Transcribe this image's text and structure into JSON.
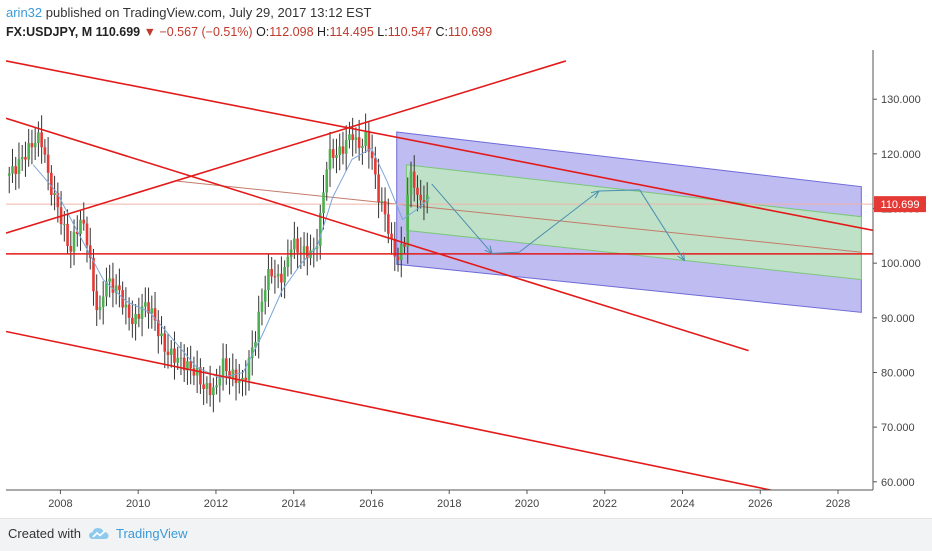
{
  "header": {
    "user": "arin32",
    "published": " published on TradingView.com, July 29, 2017 13:12 EST"
  },
  "quote": {
    "symbol": "FX:USDJPY, M",
    "last": "110.699",
    "change": "▼ −0.567 (−0.51%)",
    "o_label": "O:",
    "o": "112.098",
    "h_label": "H:",
    "h": "114.495",
    "l_label": "L:",
    "l": "110.547",
    "c_label": "C:",
    "c": "110.699"
  },
  "footer": {
    "created": "Created with",
    "brand": "TradingView"
  },
  "colors": {
    "up": "#4caf50",
    "down": "#e53935",
    "trend": "#e31a1a",
    "channel_outer": "#b3b0ee",
    "channel_inner": "#bfe8bf",
    "price_tag": "#e53935"
  },
  "chart_data": {
    "type": "candlestick",
    "symbol": "FX:USDJPY",
    "interval": "M",
    "x_range": [
      2006.6,
      2028.9
    ],
    "y_range": [
      58.5,
      139
    ],
    "x_ticks": [
      2008,
      2010,
      2012,
      2014,
      2016,
      2018,
      2020,
      2022,
      2024,
      2026,
      2028
    ],
    "x_tick_labels": [
      "2008",
      "2010",
      "2012",
      "2014",
      "2016",
      "2018",
      "2020",
      "2022",
      "2024",
      "2026",
      "2028"
    ],
    "y_ticks": [
      60,
      70,
      80,
      90,
      100,
      110,
      120,
      130
    ],
    "y_tick_labels": [
      "60.000",
      "70.000",
      "80.000",
      "90.000",
      "100.000",
      "110.000",
      "120.000",
      "130.000"
    ],
    "price_tag": "110.699",
    "price_path": [
      [
        2006.6,
        116
      ],
      [
        2006.8,
        117
      ],
      [
        2007.0,
        119
      ],
      [
        2007.2,
        121
      ],
      [
        2007.4,
        123
      ],
      [
        2007.55,
        122
      ],
      [
        2007.7,
        115
      ],
      [
        2007.9,
        111
      ],
      [
        2008.1,
        106
      ],
      [
        2008.25,
        102
      ],
      [
        2008.4,
        106
      ],
      [
        2008.55,
        108
      ],
      [
        2008.7,
        104
      ],
      [
        2008.85,
        95
      ],
      [
        2009.0,
        90
      ],
      [
        2009.15,
        97
      ],
      [
        2009.3,
        96
      ],
      [
        2009.5,
        95
      ],
      [
        2009.7,
        91
      ],
      [
        2009.9,
        89
      ],
      [
        2010.1,
        92
      ],
      [
        2010.3,
        92
      ],
      [
        2010.5,
        88
      ],
      [
        2010.7,
        84
      ],
      [
        2010.9,
        83
      ],
      [
        2011.1,
        82
      ],
      [
        2011.3,
        81
      ],
      [
        2011.5,
        80
      ],
      [
        2011.7,
        77
      ],
      [
        2011.9,
        77
      ],
      [
        2012.0,
        76.5
      ],
      [
        2012.15,
        82
      ],
      [
        2012.3,
        80
      ],
      [
        2012.5,
        79
      ],
      [
        2012.7,
        78
      ],
      [
        2012.85,
        82
      ],
      [
        2013.0,
        86
      ],
      [
        2013.2,
        94
      ],
      [
        2013.4,
        99
      ],
      [
        2013.55,
        97
      ],
      [
        2013.75,
        98
      ],
      [
        2013.95,
        104
      ],
      [
        2014.15,
        102
      ],
      [
        2014.35,
        102
      ],
      [
        2014.55,
        102
      ],
      [
        2014.7,
        109
      ],
      [
        2014.85,
        118
      ],
      [
        2014.95,
        120
      ],
      [
        2015.15,
        120
      ],
      [
        2015.35,
        122
      ],
      [
        2015.5,
        124
      ],
      [
        2015.65,
        121
      ],
      [
        2015.85,
        123
      ],
      [
        2016.0,
        120
      ],
      [
        2016.15,
        113
      ],
      [
        2016.3,
        110
      ],
      [
        2016.45,
        106
      ],
      [
        2016.55,
        102
      ],
      [
        2016.7,
        101
      ],
      [
        2016.85,
        104
      ],
      [
        2016.95,
        114
      ],
      [
        2017.05,
        117
      ],
      [
        2017.2,
        111
      ],
      [
        2017.35,
        112
      ],
      [
        2017.5,
        110.7
      ]
    ],
    "sma_path": [
      [
        2007.3,
        118
      ],
      [
        2007.9,
        113
      ],
      [
        2008.5,
        105
      ],
      [
        2009.1,
        97
      ],
      [
        2009.7,
        93
      ],
      [
        2010.3,
        91
      ],
      [
        2010.9,
        86
      ],
      [
        2011.5,
        81
      ],
      [
        2012.1,
        79
      ],
      [
        2012.7,
        80
      ],
      [
        2013.2,
        87
      ],
      [
        2013.7,
        95
      ],
      [
        2014.2,
        100
      ],
      [
        2014.6,
        103
      ],
      [
        2015.0,
        112
      ],
      [
        2015.5,
        119
      ],
      [
        2016.0,
        121
      ],
      [
        2016.4,
        115
      ],
      [
        2016.8,
        108
      ],
      [
        2017.2,
        110
      ],
      [
        2017.5,
        112
      ]
    ],
    "trend_lines": [
      {
        "from": [
          2006.6,
          137
        ],
        "to": [
          2028.9,
          106
        ]
      },
      {
        "from": [
          2006.6,
          126.5
        ],
        "to": [
          2025.7,
          84
        ]
      },
      {
        "from": [
          2006.6,
          105.5
        ],
        "to": [
          2021.0,
          137
        ]
      },
      {
        "from": [
          2006.6,
          87.5
        ],
        "to": [
          2026.6,
          58
        ]
      },
      {
        "from": [
          2006.6,
          101.7
        ],
        "to": [
          2028.9,
          101.7
        ]
      }
    ],
    "channel_outer": {
      "from_x": 2016.65,
      "to_x": 2028.6,
      "top": [
        124,
        114
      ],
      "bottom": [
        99.8,
        91
      ]
    },
    "channel_inner": {
      "from_x": 2016.9,
      "to_x": 2028.6,
      "top": [
        118,
        108.5
      ],
      "bottom": [
        106,
        97
      ]
    },
    "median_line": {
      "from": [
        2011.0,
        115
      ],
      "to": [
        2028.6,
        102
      ]
    },
    "horizontal_ref": 110.8,
    "projection_path": [
      [
        2017.55,
        114.5
      ],
      [
        2019.1,
        101.8
      ],
      [
        2019.8,
        102
      ],
      [
        2021.85,
        113.2
      ],
      [
        2022.9,
        113.4
      ],
      [
        2024.05,
        100.5
      ]
    ]
  }
}
